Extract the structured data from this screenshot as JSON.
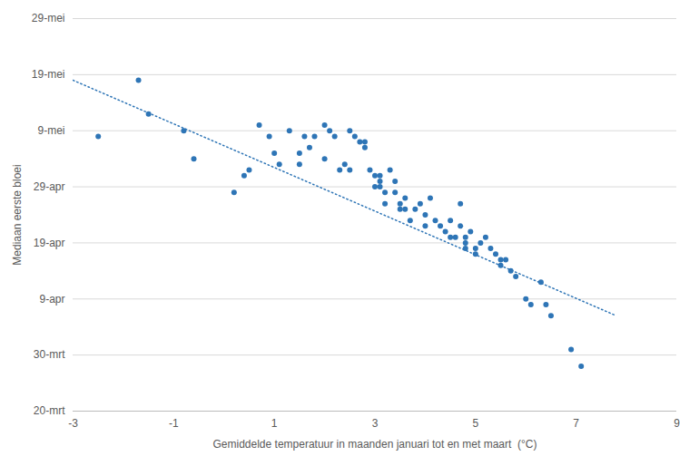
{
  "chart_data": {
    "type": "scatter",
    "xlabel": "Gemiddelde temperatuur in maanden januari tot en met maart  (°C)",
    "ylabel": "Mediaan eerste bloei",
    "xlim": [
      -3,
      9
    ],
    "xticks": [
      -3,
      -1,
      1,
      3,
      5,
      7,
      9
    ],
    "ylim": [
      79,
      149
    ],
    "yticks": [
      {
        "value": 79,
        "label": "20-mrt"
      },
      {
        "value": 89,
        "label": "30-mrt"
      },
      {
        "value": 99,
        "label": "9-apr"
      },
      {
        "value": 109,
        "label": "19-apr"
      },
      {
        "value": 119,
        "label": "29-apr"
      },
      {
        "value": 129,
        "label": "9-mei"
      },
      {
        "value": 139,
        "label": "19-mei"
      },
      {
        "value": 149,
        "label": "29-mei"
      }
    ],
    "grid": "y",
    "series": [
      {
        "type": "scatter",
        "marker": "circle",
        "color": "#2E75B6",
        "x": [
          -2.5,
          -1.7,
          -1.5,
          -0.8,
          -0.6,
          0.2,
          0.4,
          0.5,
          0.7,
          0.9,
          1.0,
          1.1,
          1.3,
          1.5,
          1.5,
          1.6,
          1.7,
          1.8,
          2.0,
          2.0,
          2.1,
          2.2,
          2.3,
          2.4,
          2.5,
          2.5,
          2.6,
          2.7,
          2.8,
          2.8,
          2.9,
          3.0,
          3.0,
          3.1,
          3.1,
          3.1,
          3.2,
          3.2,
          3.3,
          3.4,
          3.4,
          3.5,
          3.5,
          3.6,
          3.6,
          3.7,
          3.8,
          3.9,
          4.0,
          4.0,
          4.1,
          4.2,
          4.3,
          4.4,
          4.5,
          4.5,
          4.6,
          4.7,
          4.7,
          4.8,
          4.8,
          4.8,
          4.9,
          5.0,
          5.0,
          5.1,
          5.2,
          5.3,
          5.4,
          5.5,
          5.5,
          5.6,
          5.7,
          5.8,
          6.0,
          6.1,
          6.3,
          6.4,
          6.5,
          6.9,
          7.1
        ],
        "values": [
          128,
          138,
          132,
          129,
          124,
          118,
          121,
          122,
          130,
          128,
          125,
          123,
          129,
          125,
          123,
          128,
          126,
          128,
          124,
          130,
          129,
          128,
          122,
          123,
          122,
          129,
          128,
          127,
          126,
          127,
          122,
          119,
          121,
          121,
          120,
          119,
          118,
          116,
          122,
          120,
          118,
          115,
          116,
          115,
          117,
          113,
          115,
          116,
          114,
          112,
          117,
          113,
          112,
          111,
          110,
          113,
          110,
          116,
          112,
          110,
          109,
          108,
          111,
          108,
          107,
          109,
          110,
          108,
          107,
          106,
          105,
          106,
          104,
          103,
          99,
          98,
          102,
          98,
          96,
          90,
          87
        ]
      },
      {
        "type": "line",
        "line_style": "dotted",
        "color": "#2E75B6",
        "x": [
          -3.0,
          7.8
        ],
        "values": [
          138,
          96
        ]
      }
    ]
  }
}
